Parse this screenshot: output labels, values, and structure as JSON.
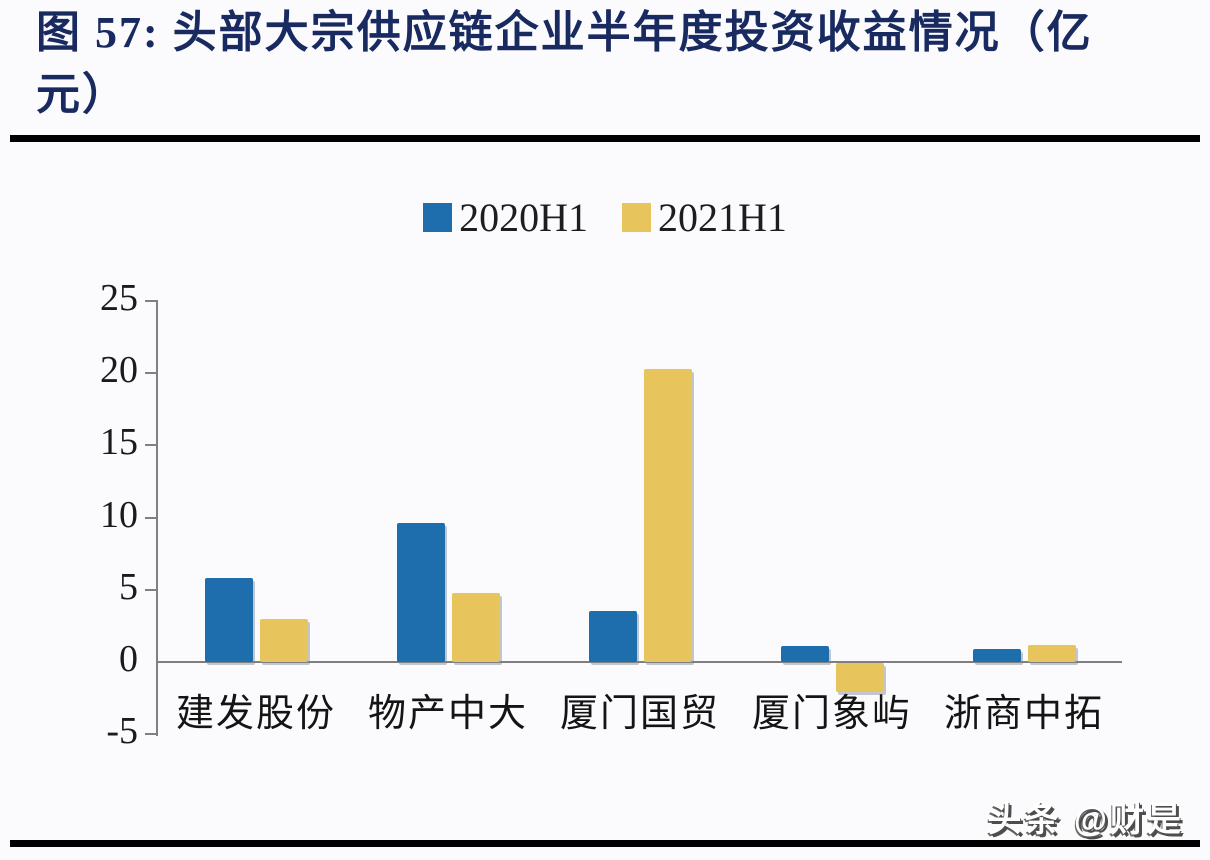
{
  "figure": {
    "title": "图 57:  头部大宗供应链企业半年度投资收益情况（亿元）",
    "watermark": "头条 @财是"
  },
  "chart_data": {
    "type": "bar",
    "title": "头部大宗供应链企业半年度投资收益情况",
    "unit_label": "亿元",
    "categories": [
      "建发股份",
      "物产中大",
      "厦门国贸",
      "厦门象屿",
      "浙商中拓"
    ],
    "series": [
      {
        "name": "2020H1",
        "color": "#1E6EAE",
        "values": [
          5.8,
          9.6,
          3.5,
          1.1,
          0.9
        ]
      },
      {
        "name": "2021H1",
        "color": "#E8C45C",
        "values": [
          3.0,
          4.8,
          20.3,
          -2.0,
          1.2
        ]
      }
    ],
    "yticks": [
      25,
      20,
      15,
      10,
      5,
      0,
      -5
    ],
    "ylim": [
      -5,
      25
    ],
    "grid": false,
    "legend_position": "top-center"
  },
  "colors": {
    "title": "#182A60",
    "axis": "#808080",
    "text": "#1B1B1B",
    "background": "#FBFBFD",
    "divider": "#000000"
  }
}
